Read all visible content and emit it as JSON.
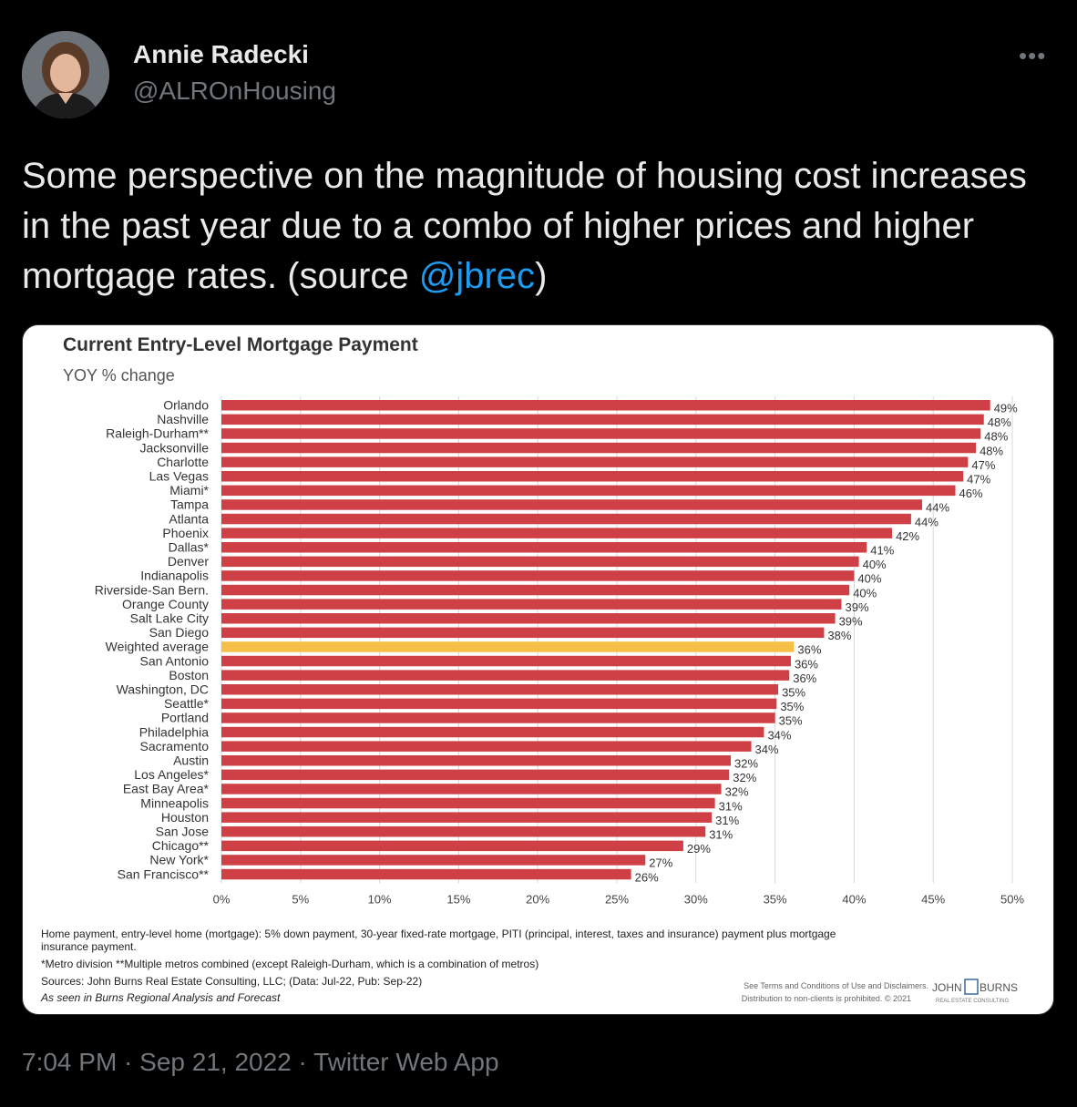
{
  "tweet": {
    "author_name": "Annie Radecki",
    "author_handle": "@ALROnHousing",
    "more_icon": "more-icon",
    "text_before": "Some perspective on the magnitude of housing cost increases in the past year due to a combo of higher prices and higher mortgage rates. (source ",
    "mention": "@jbrec",
    "text_after": ")",
    "time": "7:04 PM",
    "sep1": " · ",
    "date": "Sep 21, 2022",
    "sep2": " · ",
    "app": "Twitter Web App"
  },
  "colors": {
    "bar": "#cf3f46",
    "highlight": "#f6bf45",
    "mention": "#1d9bf0"
  },
  "chart_data": {
    "type": "bar",
    "orientation": "horizontal",
    "title": "Current Entry-Level Mortgage Payment",
    "subtitle": "YOY % change",
    "categories": [
      "Orlando",
      "Nashville",
      "Raleigh-Durham**",
      "Jacksonville",
      "Charlotte",
      "Las Vegas",
      "Miami*",
      "Tampa",
      "Atlanta",
      "Phoenix",
      "Dallas*",
      "Denver",
      "Indianapolis",
      "Riverside-San Bern.",
      "Orange County",
      "Salt Lake City",
      "San Diego",
      "Weighted average",
      "San Antonio",
      "Boston",
      "Washington, DC",
      "Seattle*",
      "Portland",
      "Philadelphia",
      "Sacramento",
      "Austin",
      "Los Angeles*",
      "East Bay Area*",
      "Minneapolis",
      "Houston",
      "San Jose",
      "Chicago**",
      "New York*",
      "San Francisco**"
    ],
    "values": [
      48.6,
      48.2,
      48.0,
      47.7,
      47.2,
      46.9,
      46.4,
      44.3,
      43.6,
      42.4,
      40.8,
      40.3,
      40.0,
      39.7,
      39.2,
      38.8,
      38.1,
      36.2,
      36.0,
      35.9,
      35.2,
      35.1,
      35.0,
      34.3,
      33.5,
      32.2,
      32.1,
      31.6,
      31.2,
      31.0,
      30.6,
      29.2,
      26.8,
      25.9
    ],
    "data_labels": [
      "49%",
      "48%",
      "48%",
      "48%",
      "47%",
      "47%",
      "46%",
      "44%",
      "44%",
      "42%",
      "41%",
      "40%",
      "40%",
      "40%",
      "39%",
      "39%",
      "38%",
      "36%",
      "36%",
      "36%",
      "35%",
      "35%",
      "35%",
      "34%",
      "34%",
      "32%",
      "32%",
      "32%",
      "31%",
      "31%",
      "31%",
      "29%",
      "27%",
      "26%"
    ],
    "highlight_category": "Weighted average",
    "xlim": [
      0,
      50
    ],
    "x_ticks": [
      "0%",
      "5%",
      "10%",
      "15%",
      "20%",
      "25%",
      "30%",
      "35%",
      "40%",
      "45%",
      "50%"
    ],
    "grid": "vertical",
    "notes": [
      "Home payment, entry-level home (mortgage): 5% down payment, 30-year fixed-rate mortgage, PITI (principal, interest, taxes and insurance) payment plus mortgage",
      "insurance payment.",
      "*Metro division **Multiple metros combined (except Raleigh-Durham, which is a combination of metros)",
      "Sources: John Burns Real Estate Consulting, LLC; (Data: Jul-22, Pub: Sep-22)",
      "As seen in Burns Regional Analysis and Forecast"
    ],
    "disclaimer": [
      "See Terms and Conditions of Use and Disclaimers.",
      "Distribution to non-clients is prohibited. © 2021"
    ],
    "logo": {
      "left": "JOHN",
      "right": "BURNS",
      "sub": "REAL ESTATE CONSULTING"
    }
  }
}
